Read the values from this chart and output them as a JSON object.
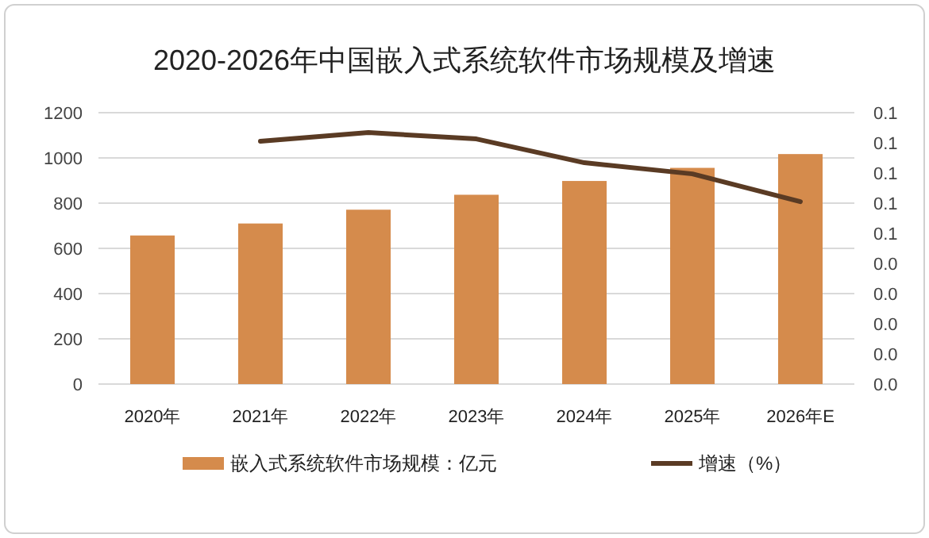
{
  "chart_data": {
    "type": "bar",
    "title": "2020-2026年中国嵌入式系统软件市场规模及增速",
    "categories": [
      "2020年",
      "2021年",
      "2022年",
      "2023年",
      "2024年",
      "2025年",
      "2026年E"
    ],
    "series": [
      {
        "name": "嵌入式系统软件市场规模：亿元",
        "color": "#d58b4c",
        "values": [
          657,
          710,
          771,
          837,
          898,
          956,
          1017
        ]
      },
      {
        "name": "增速（%）",
        "type": "line",
        "axis": "y2",
        "color": "#5a3b24",
        "values": [
          null,
          0.0805,
          0.0834,
          0.0813,
          0.0734,
          0.0697,
          0.0605
        ]
      }
    ],
    "ylim": [
      0,
      1200
    ],
    "yticks": [
      0,
      200,
      400,
      600,
      800,
      1000,
      1200
    ],
    "y2lim": [
      0,
      0.09
    ],
    "y2ticks": [
      {
        "value": 0,
        "label": "0.0"
      },
      {
        "value": 0.01,
        "label": "0.0"
      },
      {
        "value": 0.02,
        "label": "0.0"
      },
      {
        "value": 0.03,
        "label": "0.0"
      },
      {
        "value": 0.04,
        "label": "0.0"
      },
      {
        "value": 0.05,
        "label": "0.1"
      },
      {
        "value": 0.06,
        "label": "0.1"
      },
      {
        "value": 0.07,
        "label": "0.1"
      },
      {
        "value": 0.08,
        "label": "0.1"
      },
      {
        "value": 0.09,
        "label": "0.1"
      }
    ],
    "grid": "y",
    "legend": "bottom"
  }
}
